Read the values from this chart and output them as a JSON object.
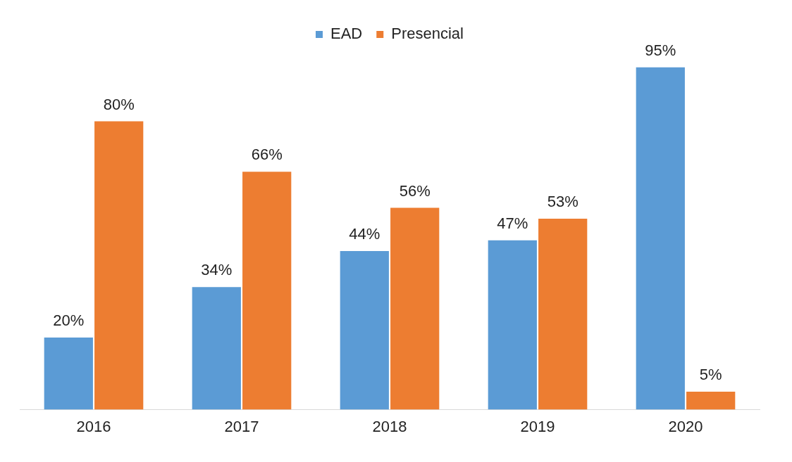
{
  "chart_data": {
    "type": "bar",
    "categories": [
      "2016",
      "2017",
      "2018",
      "2019",
      "2020"
    ],
    "series": [
      {
        "name": "EAD",
        "color": "#5b9bd5",
        "values": [
          20,
          34,
          44,
          47,
          95
        ],
        "value_labels": [
          "20%",
          "34%",
          "44%",
          "47%",
          "95%"
        ]
      },
      {
        "name": "Presencial",
        "color": "#ed7d31",
        "values": [
          80,
          66,
          56,
          53,
          5
        ],
        "value_labels": [
          "80%",
          "66%",
          "56%",
          "53%",
          "5%"
        ]
      }
    ],
    "legend": "top",
    "grid": false
  }
}
